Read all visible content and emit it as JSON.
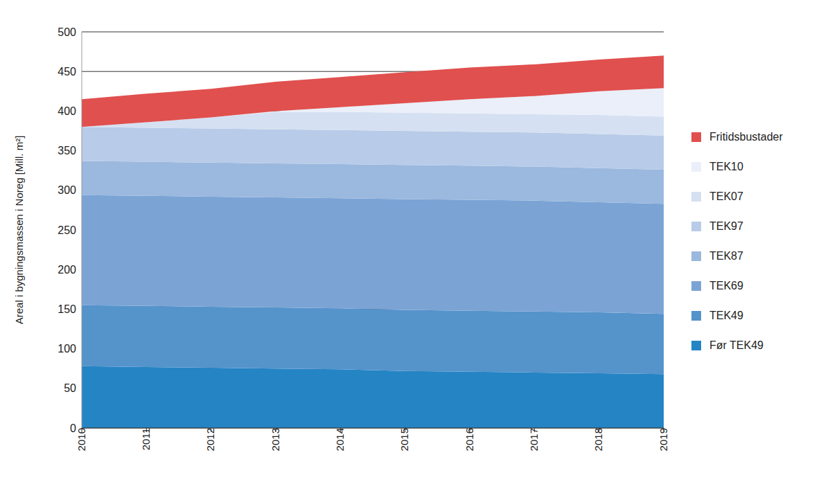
{
  "chart_data": {
    "type": "area",
    "stacked": true,
    "grid": true,
    "legend": "right",
    "y_label": "Areal i bygningsmassen i Noreg [Mill. m²]",
    "categories": [
      "2010",
      "2011",
      "2012",
      "2013",
      "2014",
      "2015",
      "2016",
      "2017",
      "2018",
      "2019"
    ],
    "ylim": [
      0,
      500
    ],
    "yticks": [
      0,
      50,
      100,
      150,
      200,
      250,
      300,
      350,
      400,
      450,
      500
    ],
    "series": [
      {
        "name": "Før TEK49",
        "color": "#2584c4",
        "values": [
          78,
          77,
          76,
          75,
          74,
          72,
          71,
          70,
          69,
          68
        ]
      },
      {
        "name": "TEK49",
        "color": "#5593cb",
        "values": [
          77,
          77,
          77,
          77,
          77,
          77,
          77,
          77,
          77,
          76
        ]
      },
      {
        "name": "TEK69",
        "color": "#7ba4d5",
        "values": [
          139,
          139,
          139,
          139,
          139,
          140,
          140,
          140,
          139,
          139
        ]
      },
      {
        "name": "TEK87",
        "color": "#9bb8de",
        "values": [
          43,
          43,
          43,
          43,
          43,
          43,
          43,
          43,
          43,
          43
        ]
      },
      {
        "name": "TEK97",
        "color": "#b8cbe8",
        "values": [
          43,
          43,
          43,
          43,
          43,
          43,
          43,
          43,
          43,
          43
        ]
      },
      {
        "name": "TEK07",
        "color": "#d5e0f2",
        "values": [
          0,
          7,
          14,
          22,
          23,
          23,
          23,
          23,
          24,
          24
        ]
      },
      {
        "name": "TEK10",
        "color": "#eaeff9",
        "values": [
          0,
          0,
          0,
          1,
          6,
          12,
          18,
          23,
          30,
          36
        ]
      },
      {
        "name": "Fritidsbustader",
        "color": "#e0504e",
        "values": [
          35,
          36,
          36,
          37,
          38,
          39,
          40,
          40,
          40,
          41
        ]
      }
    ]
  }
}
